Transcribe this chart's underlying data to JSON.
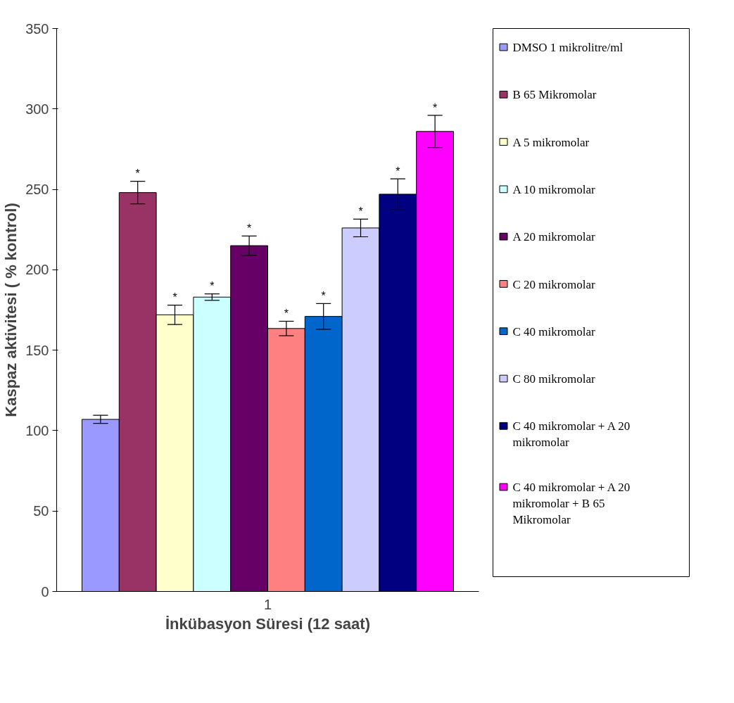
{
  "chart_data": {
    "type": "bar",
    "xlabel": "İnkübasyon Süresi (12 saat)",
    "ylabel": "Kaspaz aktivitesi ( % kontrol)",
    "categories": [
      "1"
    ],
    "ylim": [
      0,
      350
    ],
    "yticks": [
      0,
      50,
      100,
      150,
      200,
      250,
      300,
      350
    ],
    "grid": false,
    "legend": "right",
    "series": [
      {
        "name": "DMSO 1 mikrolitre/ml",
        "color": "#9999ff",
        "values": [
          107
        ],
        "errors": [
          2.5
        ]
      },
      {
        "name": "B 65 Mikromolar",
        "color": "#993366",
        "values": [
          248
        ],
        "errors": [
          7
        ],
        "value_labels": [
          "*"
        ]
      },
      {
        "name": "A 5 mikromolar",
        "color": "#ffffcc",
        "values": [
          172
        ],
        "errors": [
          6
        ],
        "value_labels": [
          "*"
        ]
      },
      {
        "name": "A 10 mikromolar",
        "color": "#ccffff",
        "values": [
          183
        ],
        "errors": [
          2
        ],
        "value_labels": [
          "*"
        ]
      },
      {
        "name": "A 20 mikromolar",
        "color": "#660066",
        "values": [
          215
        ],
        "errors": [
          6
        ],
        "value_labels": [
          "*"
        ]
      },
      {
        "name": "C 20 mikromolar",
        "color": "#ff8080",
        "values": [
          163.5
        ],
        "errors": [
          4.5
        ],
        "value_labels": [
          "*"
        ]
      },
      {
        "name": "C 40 mikromolar",
        "color": "#0066cc",
        "values": [
          171
        ],
        "errors": [
          8
        ],
        "value_labels": [
          "*"
        ]
      },
      {
        "name": "C 80 mikromolar",
        "color": "#ccccff",
        "values": [
          226
        ],
        "errors": [
          5.5
        ],
        "value_labels": [
          "*"
        ]
      },
      {
        "name": "C 40 mikromolar + A 20 mikromolar",
        "color": "#000080",
        "values": [
          247
        ],
        "errors": [
          9.5
        ],
        "value_labels": [
          "*"
        ]
      },
      {
        "name": "C 40 mikromolar + A 20 mikromolar + B 65 Mikromolar",
        "color": "#ff00ff",
        "values": [
          286
        ],
        "errors": [
          10
        ],
        "value_labels": [
          "*"
        ]
      }
    ]
  }
}
